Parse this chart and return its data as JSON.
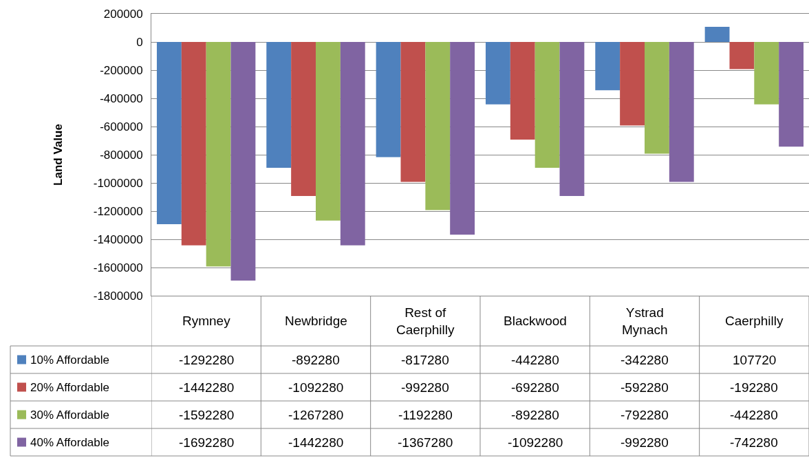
{
  "chart_data": {
    "type": "bar",
    "ylabel": "Land Value",
    "categories": [
      "Rymney",
      "Newbridge",
      "Rest of Caerphilly",
      "Blackwood",
      "Ystrad Mynach",
      "Caerphilly"
    ],
    "series": [
      {
        "name": "10% Affordable",
        "color": "#4f81bd",
        "values": [
          -1292280,
          -892280,
          -817280,
          -442280,
          -342280,
          107720
        ]
      },
      {
        "name": "20% Affordable",
        "color": "#c0504d",
        "values": [
          -1442280,
          -1092280,
          -992280,
          -692280,
          -592280,
          -192280
        ]
      },
      {
        "name": "30% Affordable",
        "color": "#9bbb59",
        "values": [
          -1592280,
          -1267280,
          -1192280,
          -892280,
          -792280,
          -442280
        ]
      },
      {
        "name": "40% Affordable",
        "color": "#8064a2",
        "values": [
          -1692280,
          -1442280,
          -1367280,
          -1092280,
          -992280,
          -742280
        ]
      }
    ],
    "ylim": [
      -1800000,
      200000
    ],
    "yticks": [
      -1800000,
      -1600000,
      -1400000,
      -1200000,
      -1000000,
      -800000,
      -600000,
      -400000,
      -200000,
      0,
      200000
    ],
    "grid": "y",
    "data_labels": true,
    "legend": "bottom left"
  }
}
